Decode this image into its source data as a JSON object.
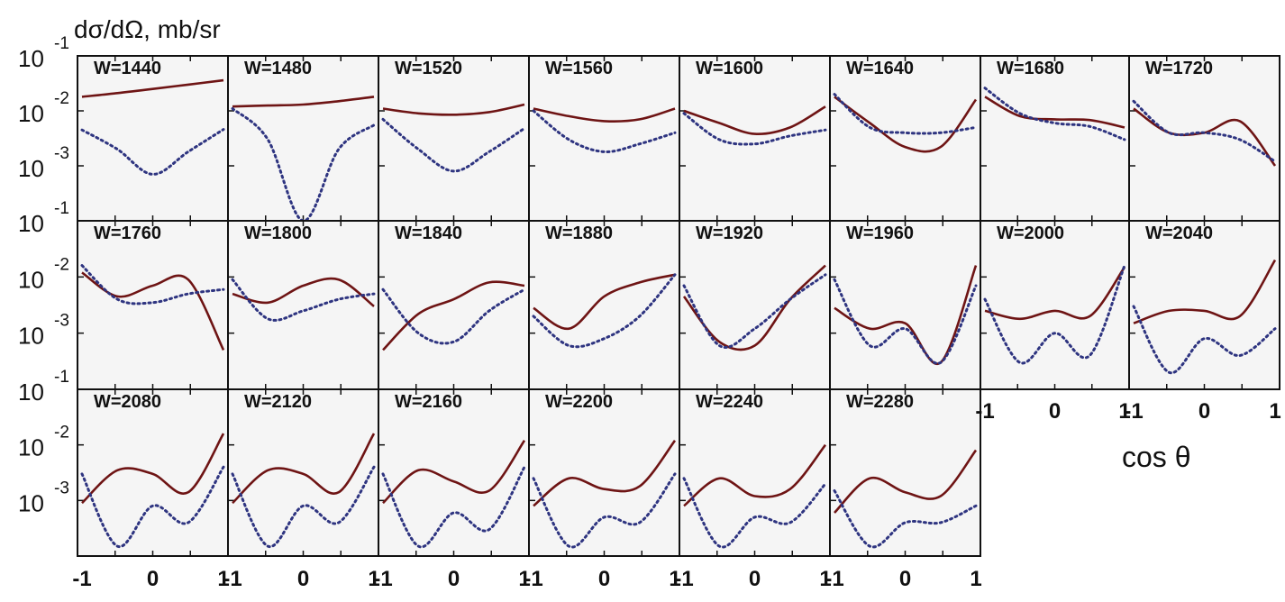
{
  "ylabel": "dσ/dΩ, mb/sr",
  "xlabel": "cos θ",
  "colors": {
    "solid": "#6e1414",
    "dotted": "#2e3480",
    "panel_bg": "#f5f5f5"
  },
  "y_tick_labels": [
    {
      "base": "10",
      "exp": "-1"
    },
    {
      "base": "10",
      "exp": "-2"
    },
    {
      "base": "10",
      "exp": "-3"
    }
  ],
  "x_tick_labels": [
    "-1",
    "0",
    "1"
  ],
  "chart_data": {
    "type": "line",
    "title": "",
    "xlabel": "cos θ",
    "ylabel": "dσ/dΩ, mb/sr",
    "y_scale": "log",
    "ylim": [
      0.0001,
      0.1
    ],
    "xlim": [
      -1,
      1
    ],
    "x": [
      -1,
      -0.5,
      0,
      0.5,
      1
    ],
    "panels": [
      {
        "label": "W=1440",
        "series": [
          {
            "values": [
              0.018,
              0.021,
              0.025,
              0.03,
              0.036
            ],
            "style": "solid"
          },
          {
            "values": [
              0.0045,
              0.002,
              0.0007,
              0.0018,
              0.0046
            ],
            "style": "dotted"
          }
        ]
      },
      {
        "label": "W=1480",
        "series": [
          {
            "values": [
              0.012,
              0.0125,
              0.013,
              0.015,
              0.018
            ],
            "style": "solid"
          },
          {
            "values": [
              0.011,
              0.003,
              0.0001,
              0.002,
              0.0055
            ],
            "style": "dotted"
          }
        ]
      },
      {
        "label": "W=1520",
        "series": [
          {
            "values": [
              0.011,
              0.009,
              0.0085,
              0.0095,
              0.013
            ],
            "style": "solid"
          },
          {
            "values": [
              0.007,
              0.002,
              0.0008,
              0.0018,
              0.0048
            ],
            "style": "dotted"
          }
        ]
      },
      {
        "label": "W=1560",
        "series": [
          {
            "values": [
              0.011,
              0.008,
              0.0065,
              0.007,
              0.011
            ],
            "style": "solid"
          },
          {
            "values": [
              0.01,
              0.003,
              0.0018,
              0.0025,
              0.004
            ],
            "style": "dotted"
          }
        ]
      },
      {
        "label": "W=1600",
        "series": [
          {
            "values": [
              0.01,
              0.006,
              0.0038,
              0.005,
              0.012
            ],
            "style": "solid"
          },
          {
            "values": [
              0.009,
              0.003,
              0.0025,
              0.0035,
              0.0045
            ],
            "style": "dotted"
          }
        ]
      },
      {
        "label": "W=1640",
        "series": [
          {
            "values": [
              0.018,
              0.006,
              0.0022,
              0.0022,
              0.016
            ],
            "style": "solid"
          },
          {
            "values": [
              0.02,
              0.005,
              0.004,
              0.004,
              0.005
            ],
            "style": "dotted"
          }
        ]
      },
      {
        "label": "W=1680",
        "series": [
          {
            "values": [
              0.018,
              0.008,
              0.007,
              0.0068,
              0.005
            ],
            "style": "solid"
          },
          {
            "values": [
              0.026,
              0.009,
              0.006,
              0.0052,
              0.003
            ],
            "style": "dotted"
          }
        ]
      },
      {
        "label": "W=1720",
        "series": [
          {
            "values": [
              0.011,
              0.004,
              0.004,
              0.0065,
              0.001
            ],
            "style": "solid"
          },
          {
            "values": [
              0.015,
              0.004,
              0.004,
              0.003,
              0.0012
            ],
            "style": "dotted"
          }
        ]
      },
      {
        "label": "W=1760",
        "series": [
          {
            "values": [
              0.012,
              0.0045,
              0.007,
              0.009,
              0.0005
            ],
            "style": "solid"
          },
          {
            "values": [
              0.016,
              0.004,
              0.0035,
              0.005,
              0.006
            ],
            "style": "dotted"
          }
        ]
      },
      {
        "label": "W=1800",
        "series": [
          {
            "values": [
              0.005,
              0.0035,
              0.007,
              0.009,
              0.003
            ],
            "style": "solid"
          },
          {
            "values": [
              0.009,
              0.0018,
              0.0025,
              0.004,
              0.005
            ],
            "style": "dotted"
          }
        ]
      },
      {
        "label": "W=1840",
        "series": [
          {
            "values": [
              0.0005,
              0.0022,
              0.004,
              0.008,
              0.007
            ],
            "style": "solid"
          },
          {
            "values": [
              0.006,
              0.001,
              0.0007,
              0.0025,
              0.006
            ],
            "style": "dotted"
          }
        ]
      },
      {
        "label": "W=1880",
        "series": [
          {
            "values": [
              0.0028,
              0.0012,
              0.0045,
              0.008,
              0.011
            ],
            "style": "solid"
          },
          {
            "values": [
              0.002,
              0.0006,
              0.0008,
              0.002,
              0.011
            ],
            "style": "dotted"
          }
        ]
      },
      {
        "label": "W=1920",
        "series": [
          {
            "values": [
              0.0045,
              0.0007,
              0.0006,
              0.004,
              0.016
            ],
            "style": "solid"
          },
          {
            "values": [
              0.007,
              0.0006,
              0.0012,
              0.004,
              0.011
            ],
            "style": "dotted"
          }
        ]
      },
      {
        "label": "W=1960",
        "series": [
          {
            "values": [
              0.0028,
              0.0012,
              0.0015,
              0.0003,
              0.016
            ],
            "style": "solid"
          },
          {
            "values": [
              0.009,
              0.0006,
              0.0012,
              0.0003,
              0.007
            ],
            "style": "dotted"
          }
        ]
      },
      {
        "label": "W=2000",
        "series": [
          {
            "values": [
              0.0025,
              0.0018,
              0.0025,
              0.002,
              0.015
            ],
            "style": "solid"
          },
          {
            "values": [
              0.004,
              0.0003,
              0.001,
              0.0004,
              0.016
            ],
            "style": "dotted"
          }
        ]
      },
      {
        "label": "W=2040",
        "series": [
          {
            "values": [
              0.0015,
              0.0025,
              0.0025,
              0.002,
              0.02
            ],
            "style": "solid"
          },
          {
            "values": [
              0.003,
              0.0002,
              0.0008,
              0.0004,
              0.0012
            ],
            "style": "dotted"
          }
        ]
      },
      {
        "label": "W=2080",
        "series": [
          {
            "values": [
              0.0009,
              0.0035,
              0.003,
              0.0014,
              0.016
            ],
            "style": "solid"
          },
          {
            "values": [
              0.003,
              0.00015,
              0.0008,
              0.0004,
              0.004
            ],
            "style": "dotted"
          }
        ]
      },
      {
        "label": "W=2120",
        "series": [
          {
            "values": [
              0.0009,
              0.0035,
              0.003,
              0.0014,
              0.016
            ],
            "style": "solid"
          },
          {
            "values": [
              0.003,
              0.00015,
              0.0008,
              0.0004,
              0.004
            ],
            "style": "dotted"
          }
        ]
      },
      {
        "label": "W=2160",
        "series": [
          {
            "values": [
              0.0009,
              0.0035,
              0.0022,
              0.0015,
              0.012
            ],
            "style": "solid"
          },
          {
            "values": [
              0.003,
              0.00015,
              0.0006,
              0.0003,
              0.004
            ],
            "style": "dotted"
          }
        ]
      },
      {
        "label": "W=2200",
        "series": [
          {
            "values": [
              0.0008,
              0.0025,
              0.0016,
              0.0018,
              0.012
            ],
            "style": "solid"
          },
          {
            "values": [
              0.0025,
              0.00015,
              0.0005,
              0.0004,
              0.003
            ],
            "style": "dotted"
          }
        ]
      },
      {
        "label": "W=2240",
        "series": [
          {
            "values": [
              0.0008,
              0.0025,
              0.0012,
              0.0016,
              0.01
            ],
            "style": "solid"
          },
          {
            "values": [
              0.0025,
              0.00015,
              0.0005,
              0.0004,
              0.002
            ],
            "style": "dotted"
          }
        ]
      },
      {
        "label": "W=2280",
        "series": [
          {
            "values": [
              0.0006,
              0.0025,
              0.0014,
              0.0012,
              0.008
            ],
            "style": "solid"
          },
          {
            "values": [
              0.0015,
              0.00015,
              0.0004,
              0.0004,
              0.0008
            ],
            "style": "dotted"
          }
        ]
      }
    ]
  }
}
